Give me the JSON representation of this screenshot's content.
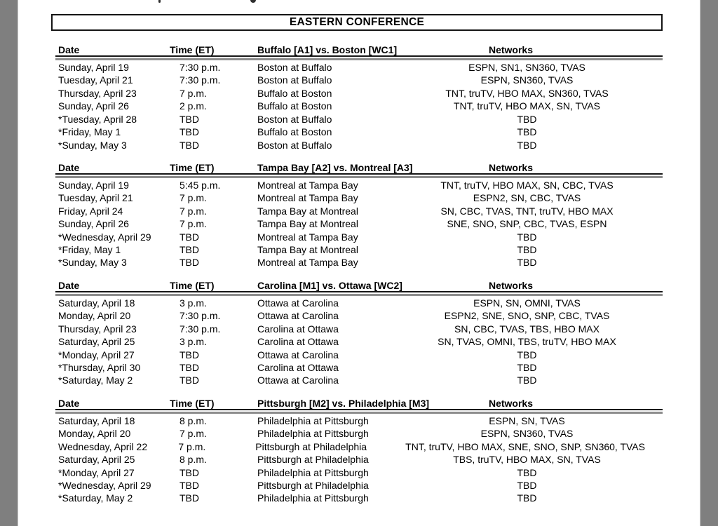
{
  "title": "EASTERN CONFERENCE",
  "columns": {
    "date": "Date",
    "time": "Time (ET)",
    "networks": "Networks"
  },
  "colors": {
    "page_background": "#ffffff",
    "viewer_margin": "#7f7f7f",
    "text": "#000000",
    "rule_black": "#161616",
    "rule_gray": "#8d8d8d"
  },
  "series": [
    {
      "matchup": "Buffalo [A1] vs. Boston [WC1]",
      "rows": [
        {
          "date": "Sunday, April 19",
          "time": "7:30 p.m.",
          "game": "Boston at Buffalo",
          "networks": "ESPN, SN1, SN360, TVAS"
        },
        {
          "date": "Tuesday, April 21",
          "time": "7:30 p.m.",
          "game": "Boston at Buffalo",
          "networks": "ESPN, SN360, TVAS"
        },
        {
          "date": "Thursday, April 23",
          "time": "7 p.m.",
          "game": "Buffalo at Boston",
          "networks": "TNT, truTV, HBO MAX, SN360, TVAS"
        },
        {
          "date": "Sunday, April 26",
          "time": "2 p.m.",
          "game": "Buffalo at Boston",
          "networks": "TNT, truTV, HBO MAX, SN, TVAS"
        },
        {
          "date": "*Tuesday, April 28",
          "time": "TBD",
          "game": "Boston at Buffalo",
          "networks": "TBD"
        },
        {
          "date": "*Friday, May 1",
          "time": "TBD",
          "game": "Buffalo at Boston",
          "networks": "TBD"
        },
        {
          "date": "*Sunday, May 3",
          "time": "TBD",
          "game": "Boston at Buffalo",
          "networks": "TBD"
        }
      ]
    },
    {
      "matchup": "Tampa Bay [A2] vs. Montreal [A3]",
      "rows": [
        {
          "date": "Sunday, April 19",
          "time": "5:45 p.m.",
          "game": "Montreal at Tampa Bay",
          "networks": "TNT, truTV, HBO MAX, SN, CBC, TVAS"
        },
        {
          "date": "Tuesday, April 21",
          "time": "7 p.m.",
          "game": "Montreal at Tampa Bay",
          "networks": "ESPN2, SN, CBC, TVAS"
        },
        {
          "date": "Friday, April 24",
          "time": "7 p.m.",
          "game": "Tampa Bay at Montreal",
          "networks": "SN, CBC, TVAS, TNT, truTV, HBO MAX"
        },
        {
          "date": "Sunday, April 26",
          "time": "7 p.m.",
          "game": "Tampa Bay at Montreal",
          "networks": "SNE, SNO, SNP, CBC, TVAS, ESPN"
        },
        {
          "date": "*Wednesday, April 29",
          "time": "TBD",
          "game": "Montreal at Tampa Bay",
          "networks": "TBD"
        },
        {
          "date": "*Friday, May 1",
          "time": "TBD",
          "game": "Tampa Bay at Montreal",
          "networks": "TBD"
        },
        {
          "date": "*Sunday, May 3",
          "time": "TBD",
          "game": "Montreal at Tampa Bay",
          "networks": "TBD"
        }
      ]
    },
    {
      "matchup": "Carolina [M1] vs. Ottawa [WC2]",
      "rows": [
        {
          "date": "Saturday, April 18",
          "time": "3 p.m.",
          "game": "Ottawa at Carolina",
          "networks": "ESPN, SN, OMNI, TVAS"
        },
        {
          "date": "Monday, April 20",
          "time": "7:30 p.m.",
          "game": "Ottawa at Carolina",
          "networks": "ESPN2, SNE, SNO, SNP, CBC, TVAS"
        },
        {
          "date": "Thursday, April 23",
          "time": "7:30 p.m.",
          "game": "Carolina at Ottawa",
          "networks": "SN, CBC, TVAS, TBS, HBO MAX"
        },
        {
          "date": "Saturday, April 25",
          "time": "3 p.m.",
          "game": "Carolina at Ottawa",
          "networks": "SN, TVAS, OMNI, TBS, truTV, HBO MAX"
        },
        {
          "date": "*Monday, April 27",
          "time": "TBD",
          "game": "Ottawa at Carolina",
          "networks": "TBD"
        },
        {
          "date": "*Thursday, April 30",
          "time": "TBD",
          "game": "Carolina at Ottawa",
          "networks": "TBD"
        },
        {
          "date": "*Saturday, May 2",
          "time": "TBD",
          "game": "Ottawa at Carolina",
          "networks": "TBD"
        }
      ]
    },
    {
      "matchup": "Pittsburgh [M2] vs. Philadelphia [M3]",
      "rows": [
        {
          "date": "Saturday, April 18",
          "time": "8 p.m.",
          "game": "Philadelphia at Pittsburgh",
          "networks": "ESPN, SN, TVAS"
        },
        {
          "date": "Monday, April 20",
          "time": "7 p.m.",
          "game": "Philadelphia at Pittsburgh",
          "networks": "ESPN, SN360, TVAS"
        },
        {
          "date": "Wednesday, April 22",
          "time": "7 p.m.",
          "game": "Pittsburgh at Philadelphia",
          "networks": "TNT, truTV, HBO MAX, SNE, SNO, SNP, SN360, TVAS"
        },
        {
          "date": "Saturday, April 25",
          "time": "8 p.m.",
          "game": "Pittsburgh at Philadelphia",
          "networks": "TBS, truTV, HBO MAX, SN, TVAS"
        },
        {
          "date": "*Monday, April 27",
          "time": "TBD",
          "game": "Philadelphia at Pittsburgh",
          "networks": "TBD"
        },
        {
          "date": "*Wednesday, April 29",
          "time": "TBD",
          "game": "Pittsburgh at Philadelphia",
          "networks": "TBD"
        },
        {
          "date": "*Saturday, May 2",
          "time": "TBD",
          "game": "Philadelphia at Pittsburgh",
          "networks": "TBD"
        }
      ]
    }
  ]
}
